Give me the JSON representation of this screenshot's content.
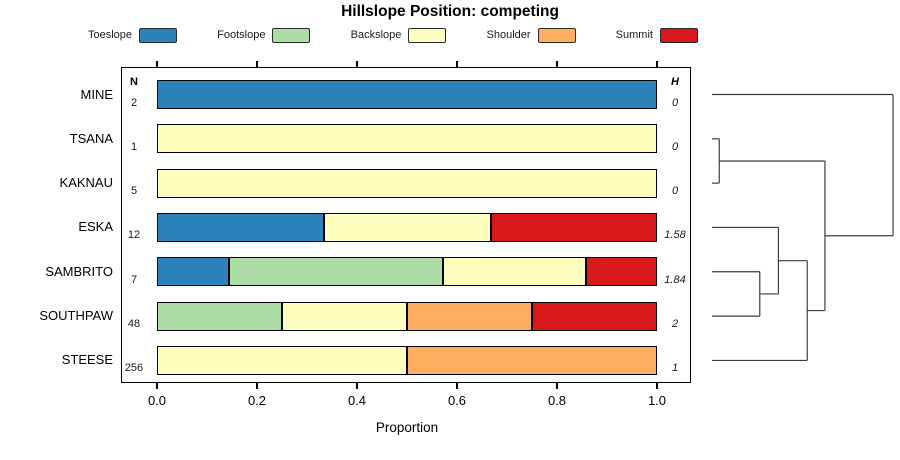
{
  "chart_data": {
    "type": "bar",
    "orientation": "horizontal",
    "stacked": true,
    "title": "Hillslope Position: competing",
    "xlabel": "Proportion",
    "xlim": [
      0.0,
      1.0
    ],
    "x_ticks": [
      "0.0",
      "0.2",
      "0.4",
      "0.6",
      "0.8",
      "1.0"
    ],
    "grid": false,
    "legend_position": "top",
    "legend": [
      {
        "label": "Toeslope",
        "color": "#2B83BA"
      },
      {
        "label": "Footslope",
        "color": "#ABDDA4"
      },
      {
        "label": "Backslope",
        "color": "#FFFFBF"
      },
      {
        "label": "Shoulder",
        "color": "#FDAE61"
      },
      {
        "label": "Summit",
        "color": "#D7191C"
      }
    ],
    "n_header": "N",
    "h_header": "H",
    "rows": [
      {
        "label": "MINE",
        "n": "2",
        "h": "0",
        "segments": [
          {
            "category": "Toeslope",
            "value": 1.0
          }
        ]
      },
      {
        "label": "TSANA",
        "n": "1",
        "h": "0",
        "segments": [
          {
            "category": "Backslope",
            "value": 1.0
          }
        ]
      },
      {
        "label": "KAKNAU",
        "n": "5",
        "h": "0",
        "segments": [
          {
            "category": "Backslope",
            "value": 1.0
          }
        ]
      },
      {
        "label": "ESKA",
        "n": "12",
        "h": "1.58",
        "segments": [
          {
            "category": "Toeslope",
            "value": 0.333
          },
          {
            "category": "Backslope",
            "value": 0.334
          },
          {
            "category": "Summit",
            "value": 0.333
          }
        ]
      },
      {
        "label": "SAMBRITO",
        "n": "7",
        "h": "1.84",
        "segments": [
          {
            "category": "Toeslope",
            "value": 0.143
          },
          {
            "category": "Footslope",
            "value": 0.428
          },
          {
            "category": "Backslope",
            "value": 0.286
          },
          {
            "category": "Summit",
            "value": 0.143
          }
        ]
      },
      {
        "label": "SOUTHPAW",
        "n": "48",
        "h": "2",
        "segments": [
          {
            "category": "Footslope",
            "value": 0.25
          },
          {
            "category": "Backslope",
            "value": 0.25
          },
          {
            "category": "Shoulder",
            "value": 0.25
          },
          {
            "category": "Summit",
            "value": 0.25
          }
        ]
      },
      {
        "label": "STEESE",
        "n": "256",
        "h": "1",
        "segments": [
          {
            "category": "Backslope",
            "value": 0.5
          },
          {
            "category": "Shoulder",
            "value": 0.5
          }
        ]
      }
    ],
    "dendrogram": {
      "position": "right",
      "merges": [
        {
          "id": "m0",
          "children": [
            "TSANA",
            "KAKNAU"
          ],
          "height": 0.04
        },
        {
          "id": "m1",
          "children": [
            "SAMBRITO",
            "SOUTHPAW"
          ],
          "height": 0.264
        },
        {
          "id": "m2",
          "children": [
            "ESKA",
            "m1"
          ],
          "height": 0.367
        },
        {
          "id": "m3",
          "children": [
            "m2",
            "STEESE"
          ],
          "height": 0.526
        },
        {
          "id": "m4",
          "children": [
            "m0",
            "m3"
          ],
          "height": 0.624
        },
        {
          "id": "m5",
          "children": [
            "MINE",
            "m4"
          ],
          "height": 1.0
        }
      ]
    }
  }
}
